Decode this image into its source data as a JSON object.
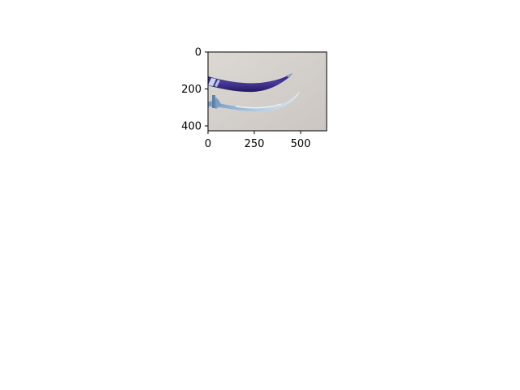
{
  "figure": {
    "background": "#ffffff",
    "axes_color": "#000000"
  },
  "image_panel": {
    "x_range": [
      0,
      640
    ],
    "y_range": [
      0,
      427
    ],
    "x_ticks": [
      0,
      250,
      500
    ],
    "y_ticks": [
      0,
      200,
      400
    ],
    "x_tick_labels": [
      "0",
      "250",
      "500"
    ],
    "y_tick_labels": [
      "0",
      "200",
      "400"
    ],
    "photo": {
      "background_color": "#d5d1cd",
      "scabbard_color": "#3a2a84",
      "scabbard_band_color": "#c9d6ea",
      "blade_color": "#9fbcd8",
      "blade_highlight_color": "#dde8f2"
    }
  }
}
